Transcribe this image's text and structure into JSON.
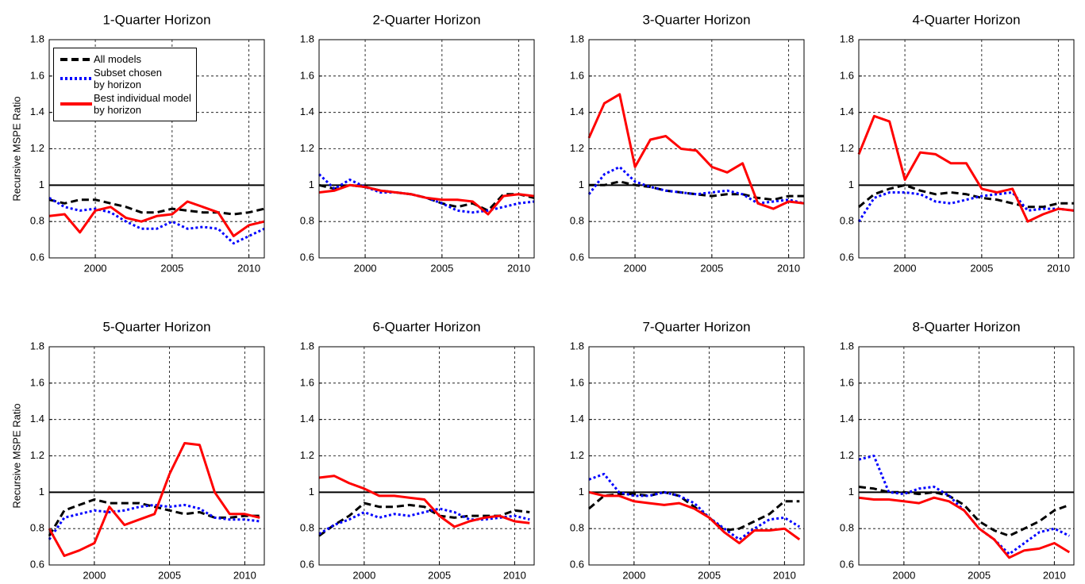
{
  "chart_data": [
    {
      "type": "line",
      "title": "1-Quarter Horizon",
      "ylabel": "Recursive MSPE Ratio",
      "x": [
        1997,
        1998,
        1999,
        2000,
        2001,
        2002,
        2003,
        2004,
        2005,
        2006,
        2007,
        2008,
        2009,
        2010,
        2011
      ],
      "xlim": [
        1997,
        2011
      ],
      "xticks": [
        2000,
        2005,
        2010
      ],
      "ylim": [
        0.6,
        1.8
      ],
      "yticks": [
        0.6,
        0.8,
        1,
        1.2,
        1.4,
        1.6,
        1.8
      ],
      "grid": true,
      "hline": 1,
      "legend": "upper left",
      "series": [
        {
          "name": "All models",
          "color": "#000000",
          "linestyle": "dashed",
          "values": [
            0.92,
            0.9,
            0.92,
            0.92,
            0.9,
            0.88,
            0.85,
            0.85,
            0.87,
            0.86,
            0.85,
            0.85,
            0.84,
            0.85,
            0.87
          ]
        },
        {
          "name": "Subset chosen\nby horizon",
          "color": "#0000ff",
          "linestyle": "dotted",
          "values": [
            0.93,
            0.88,
            0.86,
            0.87,
            0.85,
            0.8,
            0.76,
            0.76,
            0.8,
            0.76,
            0.77,
            0.76,
            0.68,
            0.72,
            0.76
          ]
        },
        {
          "name": "Best individual model\nby horizon",
          "color": "#ff0000",
          "linestyle": "solid",
          "values": [
            0.83,
            0.84,
            0.74,
            0.86,
            0.88,
            0.82,
            0.8,
            0.83,
            0.84,
            0.91,
            0.88,
            0.85,
            0.72,
            0.78,
            0.8
          ]
        }
      ]
    },
    {
      "type": "line",
      "title": "2-Quarter Horizon",
      "x": [
        1997,
        1998,
        1999,
        2000,
        2001,
        2002,
        2003,
        2004,
        2005,
        2006,
        2007,
        2008,
        2009,
        2010,
        2011
      ],
      "xlim": [
        1997,
        2011
      ],
      "xticks": [
        2000,
        2005,
        2010
      ],
      "ylim": [
        0.6,
        1.8
      ],
      "yticks": [
        0.6,
        0.8,
        1,
        1.2,
        1.4,
        1.6,
        1.8
      ],
      "grid": true,
      "hline": 1,
      "series": [
        {
          "color": "#000000",
          "linestyle": "dashed",
          "values": [
            1.0,
            0.98,
            1.0,
            0.99,
            0.97,
            0.96,
            0.95,
            0.93,
            0.9,
            0.88,
            0.9,
            0.86,
            0.95,
            0.95,
            0.93
          ]
        },
        {
          "color": "#0000ff",
          "linestyle": "dotted",
          "values": [
            1.06,
            0.98,
            1.03,
            0.99,
            0.96,
            0.96,
            0.95,
            0.93,
            0.9,
            0.86,
            0.85,
            0.86,
            0.88,
            0.9,
            0.91
          ]
        },
        {
          "color": "#ff0000",
          "linestyle": "solid",
          "values": [
            0.96,
            0.97,
            1.0,
            0.99,
            0.97,
            0.96,
            0.95,
            0.93,
            0.92,
            0.92,
            0.91,
            0.84,
            0.94,
            0.95,
            0.94
          ]
        }
      ]
    },
    {
      "type": "line",
      "title": "3-Quarter Horizon",
      "x": [
        1997,
        1998,
        1999,
        2000,
        2001,
        2002,
        2003,
        2004,
        2005,
        2006,
        2007,
        2008,
        2009,
        2010,
        2011
      ],
      "xlim": [
        1997,
        2011
      ],
      "xticks": [
        2000,
        2005,
        2010
      ],
      "ylim": [
        0.6,
        1.8
      ],
      "yticks": [
        0.6,
        0.8,
        1,
        1.2,
        1.4,
        1.6,
        1.8
      ],
      "grid": true,
      "hline": 1,
      "series": [
        {
          "color": "#000000",
          "linestyle": "dashed",
          "values": [
            1.0,
            1.0,
            1.02,
            1.0,
            0.99,
            0.97,
            0.96,
            0.95,
            0.94,
            0.95,
            0.95,
            0.93,
            0.92,
            0.94,
            0.94
          ]
        },
        {
          "color": "#0000ff",
          "linestyle": "dotted",
          "values": [
            0.95,
            1.06,
            1.1,
            1.02,
            0.99,
            0.97,
            0.96,
            0.95,
            0.96,
            0.97,
            0.95,
            0.9,
            0.91,
            0.92,
            0.9
          ]
        },
        {
          "color": "#ff0000",
          "linestyle": "solid",
          "values": [
            1.26,
            1.45,
            1.5,
            1.1,
            1.25,
            1.27,
            1.2,
            1.19,
            1.1,
            1.07,
            1.12,
            0.9,
            0.87,
            0.91,
            0.9
          ]
        }
      ]
    },
    {
      "type": "line",
      "title": "4-Quarter Horizon",
      "x": [
        1997,
        1998,
        1999,
        2000,
        2001,
        2002,
        2003,
        2004,
        2005,
        2006,
        2007,
        2008,
        2009,
        2010,
        2011
      ],
      "xlim": [
        1997,
        2011
      ],
      "xticks": [
        2000,
        2005,
        2010
      ],
      "ylim": [
        0.6,
        1.8
      ],
      "yticks": [
        0.6,
        0.8,
        1,
        1.2,
        1.4,
        1.6,
        1.8
      ],
      "grid": true,
      "hline": 1,
      "series": [
        {
          "color": "#000000",
          "linestyle": "dashed",
          "values": [
            0.88,
            0.95,
            0.98,
            1.0,
            0.97,
            0.95,
            0.96,
            0.95,
            0.93,
            0.92,
            0.9,
            0.88,
            0.88,
            0.9,
            0.9
          ]
        },
        {
          "color": "#0000ff",
          "linestyle": "dotted",
          "values": [
            0.8,
            0.93,
            0.96,
            0.96,
            0.95,
            0.91,
            0.9,
            0.92,
            0.94,
            0.95,
            0.96,
            0.86,
            0.87,
            0.87,
            0.86
          ]
        },
        {
          "color": "#ff0000",
          "linestyle": "solid",
          "values": [
            1.17,
            1.38,
            1.35,
            1.03,
            1.18,
            1.17,
            1.12,
            1.12,
            0.98,
            0.96,
            0.98,
            0.8,
            0.84,
            0.87,
            0.86
          ]
        }
      ]
    },
    {
      "type": "line",
      "title": "5-Quarter Horizon",
      "ylabel": "Recursive MSPE Ratio",
      "x": [
        1997,
        1998,
        1999,
        2000,
        2001,
        2002,
        2003,
        2004,
        2005,
        2006,
        2007,
        2008,
        2009,
        2010,
        2011
      ],
      "xlim": [
        1997,
        2011.3
      ],
      "xticks": [
        2000,
        2005,
        2010
      ],
      "ylim": [
        0.6,
        1.8
      ],
      "yticks": [
        0.6,
        0.8,
        1,
        1.2,
        1.4,
        1.6,
        1.8
      ],
      "grid": true,
      "hline": 1,
      "series": [
        {
          "color": "#000000",
          "linestyle": "dashed",
          "values": [
            0.76,
            0.9,
            0.93,
            0.96,
            0.94,
            0.94,
            0.94,
            0.92,
            0.9,
            0.88,
            0.89,
            0.86,
            0.86,
            0.87,
            0.87
          ]
        },
        {
          "color": "#0000ff",
          "linestyle": "dotted",
          "values": [
            0.74,
            0.86,
            0.88,
            0.9,
            0.89,
            0.9,
            0.92,
            0.93,
            0.92,
            0.93,
            0.91,
            0.86,
            0.85,
            0.85,
            0.84
          ]
        },
        {
          "color": "#ff0000",
          "linestyle": "solid",
          "values": [
            0.8,
            0.65,
            0.68,
            0.72,
            0.92,
            0.82,
            0.85,
            0.88,
            1.1,
            1.27,
            1.26,
            1.0,
            0.88,
            0.88,
            0.86
          ]
        }
      ]
    },
    {
      "type": "line",
      "title": "6-Quarter Horizon",
      "x": [
        1997,
        1998,
        1999,
        2000,
        2001,
        2002,
        2003,
        2004,
        2005,
        2006,
        2007,
        2008,
        2009,
        2010,
        2011
      ],
      "xlim": [
        1997,
        2011.3
      ],
      "xticks": [
        2000,
        2005,
        2010
      ],
      "ylim": [
        0.6,
        1.8
      ],
      "yticks": [
        0.6,
        0.8,
        1,
        1.2,
        1.4,
        1.6,
        1.8
      ],
      "grid": true,
      "hline": 1,
      "series": [
        {
          "color": "#000000",
          "linestyle": "dashed",
          "values": [
            0.76,
            0.82,
            0.87,
            0.94,
            0.92,
            0.92,
            0.93,
            0.92,
            0.87,
            0.86,
            0.87,
            0.87,
            0.87,
            0.9,
            0.89
          ]
        },
        {
          "color": "#0000ff",
          "linestyle": "dotted",
          "values": [
            0.77,
            0.82,
            0.85,
            0.89,
            0.86,
            0.88,
            0.87,
            0.89,
            0.91,
            0.89,
            0.85,
            0.85,
            0.86,
            0.87,
            0.85
          ]
        },
        {
          "color": "#ff0000",
          "linestyle": "solid",
          "values": [
            1.08,
            1.09,
            1.05,
            1.02,
            0.98,
            0.98,
            0.97,
            0.96,
            0.87,
            0.81,
            0.84,
            0.86,
            0.87,
            0.84,
            0.83
          ]
        }
      ]
    },
    {
      "type": "line",
      "title": "7-Quarter Horizon",
      "x": [
        1997,
        1998,
        1999,
        2000,
        2001,
        2002,
        2003,
        2004,
        2005,
        2006,
        2007,
        2008,
        2009,
        2010,
        2011
      ],
      "xlim": [
        1997,
        2011.3
      ],
      "xticks": [
        2000,
        2005,
        2010
      ],
      "ylim": [
        0.6,
        1.8
      ],
      "yticks": [
        0.6,
        0.8,
        1,
        1.2,
        1.4,
        1.6,
        1.8
      ],
      "grid": true,
      "hline": 1,
      "series": [
        {
          "color": "#000000",
          "linestyle": "dashed",
          "values": [
            0.91,
            0.98,
            0.99,
            0.99,
            0.98,
            1.0,
            0.98,
            0.92,
            0.86,
            0.79,
            0.8,
            0.84,
            0.88,
            0.95,
            0.95
          ]
        },
        {
          "color": "#0000ff",
          "linestyle": "dotted",
          "values": [
            1.07,
            1.1,
            1.0,
            0.98,
            0.98,
            1.0,
            0.98,
            0.94,
            0.86,
            0.8,
            0.74,
            0.8,
            0.85,
            0.86,
            0.81
          ]
        },
        {
          "color": "#ff0000",
          "linestyle": "solid",
          "values": [
            1.0,
            0.98,
            0.98,
            0.95,
            0.94,
            0.93,
            0.94,
            0.91,
            0.86,
            0.78,
            0.72,
            0.79,
            0.79,
            0.8,
            0.74
          ]
        }
      ]
    },
    {
      "type": "line",
      "title": "8-Quarter Horizon",
      "x": [
        1997,
        1998,
        1999,
        2000,
        2001,
        2002,
        2003,
        2004,
        2005,
        2006,
        2007,
        2008,
        2009,
        2010,
        2011
      ],
      "xlim": [
        1997,
        2011.3
      ],
      "xticks": [
        2000,
        2005,
        2010
      ],
      "ylim": [
        0.6,
        1.8
      ],
      "yticks": [
        0.6,
        0.8,
        1,
        1.2,
        1.4,
        1.6,
        1.8
      ],
      "grid": true,
      "hline": 1,
      "series": [
        {
          "color": "#000000",
          "linestyle": "dashed",
          "values": [
            1.03,
            1.02,
            1.0,
            1.0,
            0.99,
            1.0,
            0.98,
            0.93,
            0.84,
            0.79,
            0.76,
            0.8,
            0.84,
            0.9,
            0.93
          ]
        },
        {
          "color": "#0000ff",
          "linestyle": "dotted",
          "values": [
            1.18,
            1.2,
            1.0,
            0.99,
            1.02,
            1.03,
            0.98,
            0.9,
            0.8,
            0.74,
            0.66,
            0.72,
            0.78,
            0.8,
            0.76
          ]
        },
        {
          "color": "#ff0000",
          "linestyle": "solid",
          "values": [
            0.97,
            0.96,
            0.96,
            0.95,
            0.94,
            0.97,
            0.95,
            0.9,
            0.8,
            0.74,
            0.64,
            0.68,
            0.69,
            0.72,
            0.67
          ]
        }
      ]
    }
  ]
}
